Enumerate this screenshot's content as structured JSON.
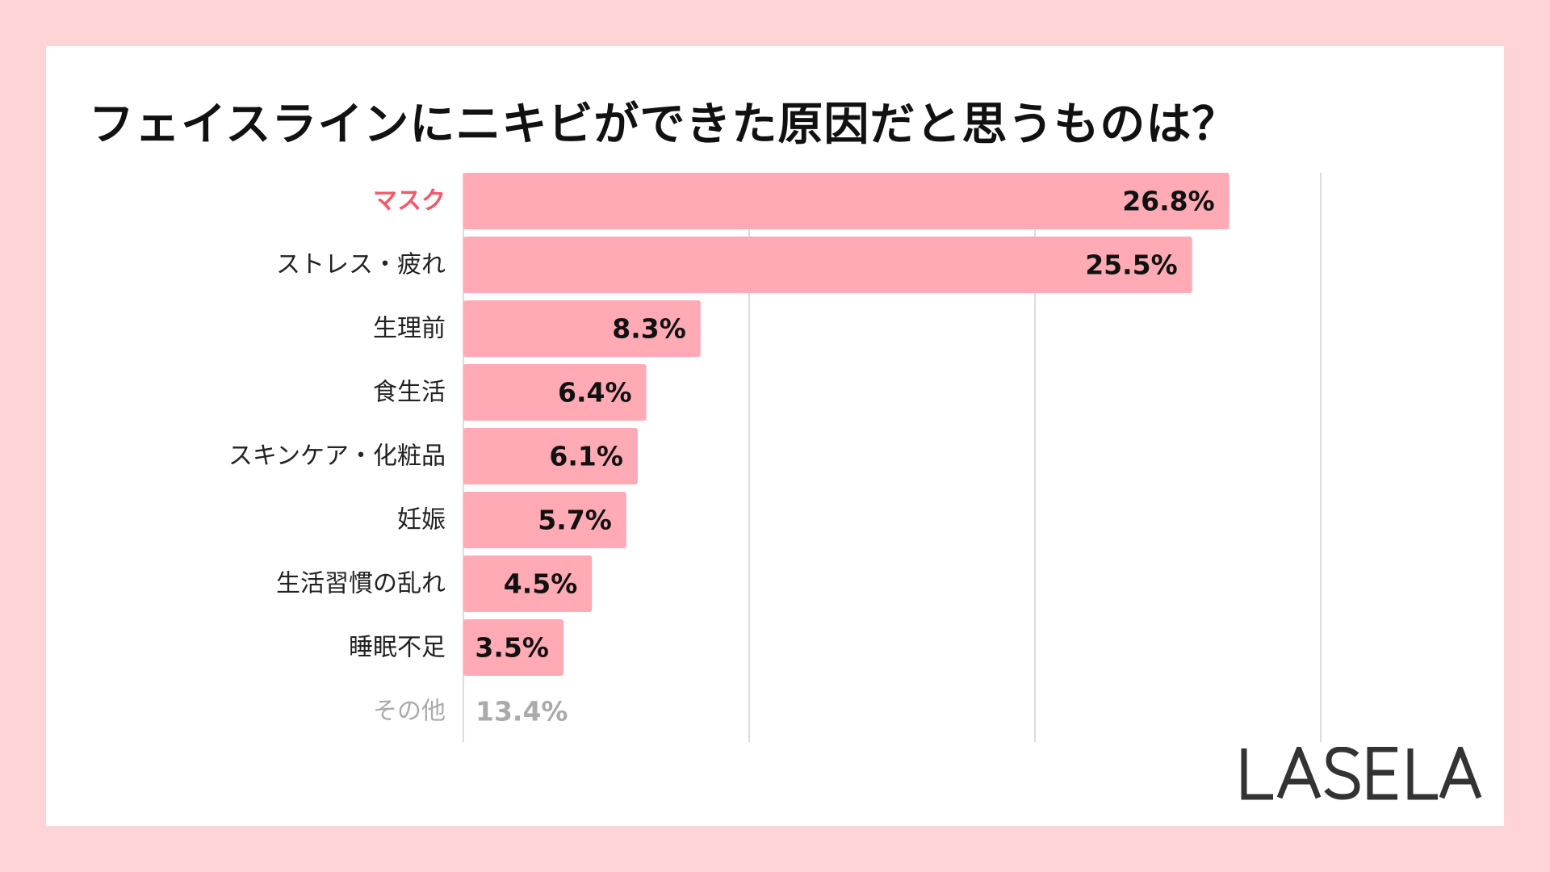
{
  "chart_data": {
    "type": "bar",
    "orientation": "horizontal",
    "title": "フェイスラインにニキビができた原因だと思うものは？",
    "categories": [
      "マスク",
      "ストレス・疲れ",
      "生理前",
      "食生活",
      "スキンケア・化粧品",
      "妊娠",
      "生活習慣の乱れ",
      "睡眠不足",
      "その他"
    ],
    "values": [
      26.8,
      25.5,
      8.3,
      6.4,
      6.1,
      5.7,
      4.5,
      3.5,
      13.4
    ],
    "value_labels": [
      "26.8%",
      "25.5%",
      "8.3%",
      "6.4%",
      "6.1%",
      "5.7%",
      "4.5%",
      "3.5%",
      "13.4%"
    ],
    "highlight_category": "マスク",
    "bar_shown": [
      true,
      true,
      true,
      true,
      true,
      true,
      true,
      true,
      false
    ],
    "xlim": [
      0,
      30
    ],
    "gridlines": [
      0,
      10,
      20,
      30
    ],
    "grid": true,
    "colors": {
      "bar": "#ffaab4",
      "label": "#222222",
      "highlight_label": "#f05a6b",
      "muted": "#aaaaaa",
      "value": "#111111",
      "grid": "#d0d0d0"
    }
  },
  "logo": {
    "text": "LASELA",
    "color": "#333333"
  }
}
